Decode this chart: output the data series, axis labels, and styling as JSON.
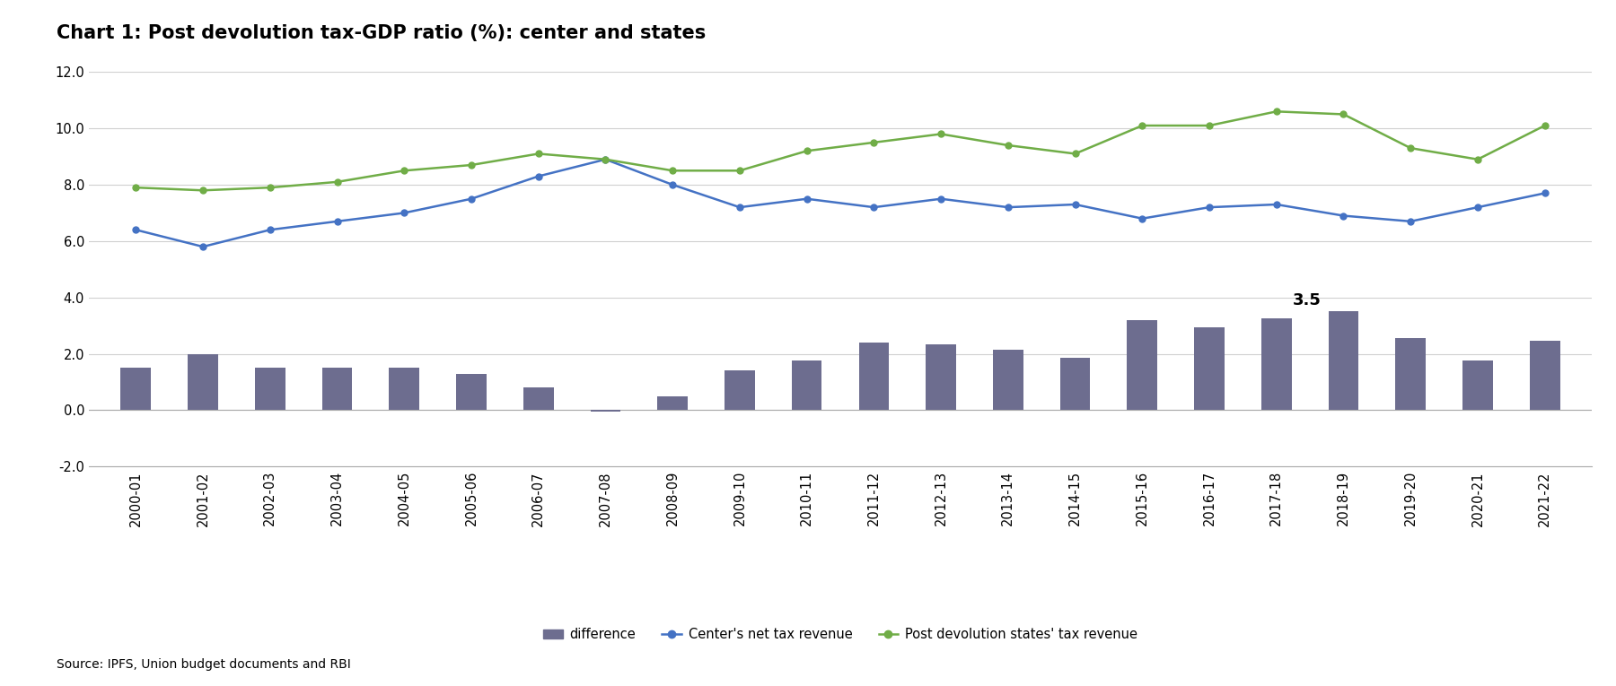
{
  "title": "Chart 1: Post devolution tax-GDP ratio (%): center and states",
  "source": "Source: IPFS, Union budget documents and RBI",
  "years": [
    "2000-01",
    "2001-02",
    "2002-03",
    "2003-04",
    "2004-05",
    "2005-06",
    "2006-07",
    "2007-08",
    "2008-09",
    "2009-10",
    "2010-11",
    "2011-12",
    "2012-13",
    "2013-14",
    "2014-15",
    "2015-16",
    "2016-17",
    "2017-18",
    "2018-19",
    "2019-20",
    "2020-21",
    "2021-22"
  ],
  "center_net": [
    6.4,
    5.8,
    6.4,
    6.7,
    7.0,
    7.5,
    8.3,
    8.9,
    8.0,
    7.2,
    7.5,
    7.2,
    7.5,
    7.2,
    7.3,
    6.8,
    7.2,
    7.3,
    6.9,
    6.7,
    7.2,
    7.7
  ],
  "states_post": [
    7.9,
    7.8,
    7.9,
    8.1,
    8.5,
    8.7,
    9.1,
    8.9,
    8.5,
    8.5,
    9.2,
    9.5,
    9.8,
    9.4,
    9.1,
    10.1,
    10.1,
    10.6,
    10.5,
    9.3,
    8.9,
    10.1
  ],
  "difference": [
    1.5,
    2.0,
    1.5,
    1.5,
    1.5,
    1.3,
    0.8,
    -0.05,
    0.5,
    1.4,
    1.75,
    2.4,
    2.35,
    2.15,
    1.85,
    3.2,
    2.95,
    3.25,
    3.5,
    2.55,
    1.75,
    2.45
  ],
  "annotate_year_idx": 18,
  "annotate_value": "3.5",
  "bar_color": "#6d6d8f",
  "center_line_color": "#4472c4",
  "states_line_color": "#70ad47",
  "ylim": [
    -2.0,
    12.0
  ],
  "yticks": [
    -2.0,
    0.0,
    2.0,
    4.0,
    6.0,
    8.0,
    10.0,
    12.0
  ],
  "background_color": "#ffffff",
  "grid_color": "#d0d0d0",
  "title_fontsize": 15,
  "tick_fontsize": 10.5,
  "legend_fontsize": 10.5,
  "source_fontsize": 10
}
